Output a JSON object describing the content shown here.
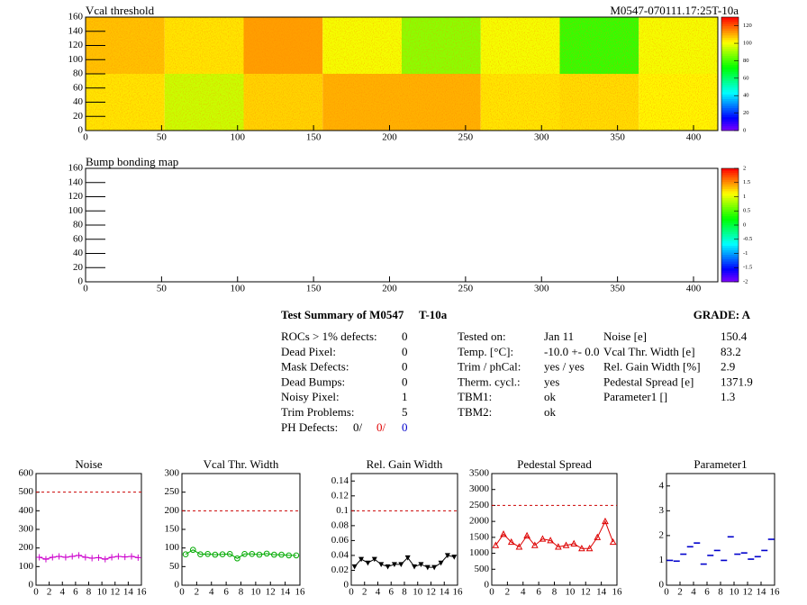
{
  "chart_data": [
    {
      "type": "heatmap",
      "title": "Vcal threshold",
      "label": "M0547-070111.17:25T-10a",
      "x": [
        0,
        52,
        104,
        156,
        208,
        260,
        312,
        364,
        416
      ],
      "y": [
        0,
        80,
        160
      ],
      "values": [
        [
          104,
          95,
          106,
          110,
          110,
          104,
          105,
          102
        ],
        [
          108,
          104,
          112,
          100,
          88,
          100,
          78,
          100
        ]
      ],
      "xlim": [
        0,
        416
      ],
      "xticks": [
        0,
        50,
        100,
        150,
        200,
        250,
        300,
        350,
        400
      ],
      "ylim": [
        0,
        160
      ],
      "yticks": [
        0,
        20,
        40,
        60,
        80,
        100,
        120,
        140,
        160
      ],
      "zlim": [
        0,
        130
      ],
      "zticks": [
        0,
        20,
        40,
        60,
        80,
        100,
        120
      ]
    },
    {
      "type": "heatmap",
      "title": "Bump bonding map",
      "x": [],
      "y": [],
      "values": [],
      "xlim": [
        0,
        416
      ],
      "xticks": [
        0,
        50,
        100,
        150,
        200,
        250,
        300,
        350,
        400
      ],
      "ylim": [
        0,
        160
      ],
      "yticks": [
        0,
        20,
        40,
        60,
        80,
        100,
        120,
        140,
        160
      ],
      "zlim": [
        -2,
        2
      ],
      "zticks": [
        -2,
        -1.5,
        -1,
        -0.5,
        0,
        0.5,
        1,
        1.5,
        2
      ]
    },
    {
      "type": "line",
      "title": "Noise",
      "color": "#cc00cc",
      "marker": "cross",
      "line": true,
      "x": [
        0.5,
        1.5,
        2.5,
        3.5,
        4.5,
        5.5,
        6.5,
        7.5,
        8.5,
        9.5,
        10.5,
        11.5,
        12.5,
        13.5,
        14.5,
        15.5
      ],
      "values": [
        150,
        140,
        150,
        155,
        150,
        155,
        160,
        150,
        145,
        148,
        140,
        150,
        155,
        152,
        155,
        148
      ],
      "xlim": [
        0,
        16
      ],
      "xticks": [
        0,
        2,
        4,
        6,
        8,
        10,
        12,
        14,
        16
      ],
      "ylim": [
        0,
        600
      ],
      "yticks": [
        0,
        100,
        200,
        300,
        400,
        500,
        600
      ],
      "limit": 500
    },
    {
      "type": "line",
      "title": "Vcal Thr. Width",
      "color": "#00aa00",
      "marker": "circle",
      "line": true,
      "x": [
        0.5,
        1.5,
        2.5,
        3.5,
        4.5,
        5.5,
        6.5,
        7.5,
        8.5,
        9.5,
        10.5,
        11.5,
        12.5,
        13.5,
        14.5,
        15.5
      ],
      "values": [
        83,
        95,
        83,
        84,
        82,
        83,
        84,
        72,
        84,
        84,
        82,
        85,
        82,
        82,
        80,
        80
      ],
      "xlim": [
        0,
        16
      ],
      "xticks": [
        0,
        2,
        4,
        6,
        8,
        10,
        12,
        14,
        16
      ],
      "ylim": [
        0,
        300
      ],
      "yticks": [
        0,
        50,
        100,
        150,
        200,
        250,
        300
      ],
      "limit": 200
    },
    {
      "type": "line",
      "title": "Rel. Gain Width",
      "color": "#000000",
      "marker": "triangle-down",
      "line": true,
      "x": [
        0.5,
        1.5,
        2.5,
        3.5,
        4.5,
        5.5,
        6.5,
        7.5,
        8.5,
        9.5,
        10.5,
        11.5,
        12.5,
        13.5,
        14.5,
        15.5
      ],
      "values": [
        0.025,
        0.035,
        0.03,
        0.035,
        0.028,
        0.025,
        0.028,
        0.028,
        0.037,
        0.025,
        0.028,
        0.024,
        0.024,
        0.03,
        0.04,
        0.038
      ],
      "xlim": [
        0,
        16
      ],
      "xticks": [
        0,
        2,
        4,
        6,
        8,
        10,
        12,
        14,
        16
      ],
      "ylim": [
        0,
        0.15
      ],
      "yticks": [
        0,
        0.02,
        0.04,
        0.06,
        0.08,
        0.1,
        0.12,
        0.14
      ],
      "limit": 0.1
    },
    {
      "type": "line",
      "title": "Pedestal Spread",
      "color": "#dd0000",
      "marker": "triangle",
      "line": true,
      "x": [
        0.5,
        1.5,
        2.5,
        3.5,
        4.5,
        5.5,
        6.5,
        7.5,
        8.5,
        9.5,
        10.5,
        11.5,
        12.5,
        13.5,
        14.5,
        15.5
      ],
      "values": [
        1250,
        1600,
        1350,
        1200,
        1550,
        1250,
        1450,
        1400,
        1200,
        1250,
        1300,
        1150,
        1150,
        1500,
        2000,
        1350
      ],
      "xlim": [
        0,
        16
      ],
      "xticks": [
        0,
        2,
        4,
        6,
        8,
        10,
        12,
        14,
        16
      ],
      "ylim": [
        0,
        3500
      ],
      "yticks": [
        0,
        500,
        1000,
        1500,
        2000,
        2500,
        3000,
        3500
      ],
      "limit": 2500
    },
    {
      "type": "line",
      "title": "Parameter1",
      "color": "#0000cc",
      "marker": "dash",
      "line": false,
      "x": [
        0.5,
        1.5,
        2.5,
        3.5,
        4.5,
        5.5,
        6.5,
        7.5,
        8.5,
        9.5,
        10.5,
        11.5,
        12.5,
        13.5,
        14.5,
        15.5
      ],
      "values": [
        1.0,
        0.97,
        1.25,
        1.55,
        1.7,
        0.85,
        1.2,
        1.4,
        1.0,
        1.95,
        1.25,
        1.3,
        1.05,
        1.15,
        1.4,
        1.85
      ],
      "xlim": [
        0,
        16
      ],
      "xticks": [
        0,
        2,
        4,
        6,
        8,
        10,
        12,
        14,
        16
      ],
      "ylim": [
        0,
        4.5
      ],
      "yticks": [
        0,
        1,
        2,
        3,
        4
      ]
    }
  ],
  "summary": {
    "title": "Test Summary of M0547",
    "subtitle": "T-10a",
    "grade": "GRADE:  A",
    "defects": [
      [
        "ROCs > 1% defects:",
        "0"
      ],
      [
        "Dead Pixel:",
        "0"
      ],
      [
        "Mask Defects:",
        "0"
      ],
      [
        "Dead Bumps:",
        "0"
      ],
      [
        "Noisy Pixel:",
        "1"
      ],
      [
        "Trim Problems:",
        "5"
      ]
    ],
    "ph_defects": {
      "label": "PH Defects:",
      "parts": [
        "0/",
        "0/",
        "0"
      ]
    },
    "conditions": [
      [
        "Tested on:",
        "Jan 11"
      ],
      [
        "Temp. [°C]:",
        "-10.0 +- 0.0"
      ],
      [
        "Trim / phCal:",
        "yes / yes"
      ],
      [
        "Therm. cycl.:",
        "yes"
      ],
      [
        "TBM1:",
        "ok"
      ],
      [
        "TBM2:",
        "ok"
      ]
    ],
    "results": [
      [
        "Noise [e]",
        "150.4"
      ],
      [
        "Vcal Thr. Width [e]",
        "83.2"
      ],
      [
        "Rel. Gain Width [%]",
        "2.9"
      ],
      [
        "Pedestal Spread [e]",
        "1371.9"
      ],
      [
        "Parameter1 []",
        "1.3"
      ]
    ]
  }
}
